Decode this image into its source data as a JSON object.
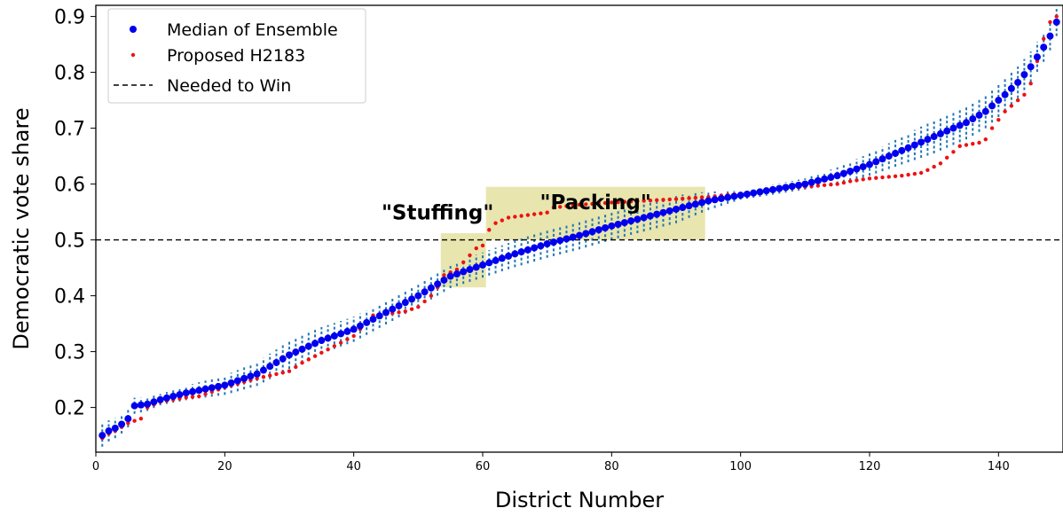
{
  "chart_data": {
    "type": "scatter",
    "xlabel": "District Number",
    "ylabel": "Democratic vote share",
    "xlim": [
      0,
      150
    ],
    "ylim": [
      0.12,
      0.92
    ],
    "xticks": [
      0,
      20,
      40,
      60,
      80,
      100,
      120,
      140
    ],
    "yticks": [
      0.2,
      0.3,
      0.4,
      0.5,
      0.6,
      0.7,
      0.8,
      0.9
    ],
    "grid": false,
    "legend_position": "top-left",
    "legend": {
      "median": "Median of Ensemble",
      "proposed": "Proposed H2183",
      "needed": "Needed to Win"
    },
    "colors": {
      "median": "#0000ee",
      "proposed": "#ee1111",
      "needed": "#000000",
      "range": "#1f77b4",
      "highlight": "#d8d47a"
    },
    "needed_to_win": 0.5,
    "annotations": [
      {
        "text": "\"Stuffing\"",
        "x": 53,
        "y": 0.537
      },
      {
        "text": "\"Packing\"",
        "x": 77.5,
        "y": 0.555
      }
    ],
    "highlight_regions": [
      {
        "x0": 53.5,
        "x1": 60.5,
        "y0": 0.415,
        "y1": 0.512
      },
      {
        "x0": 60.5,
        "x1": 94.5,
        "y0": 0.5,
        "y1": 0.595
      }
    ],
    "anchors": {
      "median": [
        [
          1,
          0.15
        ],
        [
          2,
          0.158
        ],
        [
          3,
          0.163
        ],
        [
          4,
          0.17
        ],
        [
          5,
          0.18
        ],
        [
          6,
          0.203
        ],
        [
          8,
          0.206
        ],
        [
          10,
          0.214
        ],
        [
          14,
          0.226
        ],
        [
          20,
          0.24
        ],
        [
          25,
          0.26
        ],
        [
          30,
          0.294
        ],
        [
          35,
          0.32
        ],
        [
          40,
          0.34
        ],
        [
          45,
          0.37
        ],
        [
          50,
          0.4
        ],
        [
          55,
          0.435
        ],
        [
          60,
          0.455
        ],
        [
          65,
          0.475
        ],
        [
          70,
          0.493
        ],
        [
          75,
          0.508
        ],
        [
          80,
          0.525
        ],
        [
          85,
          0.54
        ],
        [
          90,
          0.555
        ],
        [
          95,
          0.57
        ],
        [
          100,
          0.58
        ],
        [
          105,
          0.59
        ],
        [
          110,
          0.6
        ],
        [
          115,
          0.615
        ],
        [
          120,
          0.635
        ],
        [
          125,
          0.66
        ],
        [
          130,
          0.685
        ],
        [
          135,
          0.71
        ],
        [
          138,
          0.73
        ],
        [
          141,
          0.76
        ],
        [
          143,
          0.782
        ],
        [
          145,
          0.81
        ],
        [
          147,
          0.845
        ],
        [
          148,
          0.865
        ],
        [
          149,
          0.89
        ]
      ],
      "proposed": [
        [
          1,
          0.145
        ],
        [
          2,
          0.153
        ],
        [
          3,
          0.158
        ],
        [
          4,
          0.165
        ],
        [
          5,
          0.172
        ],
        [
          6,
          0.176
        ],
        [
          7,
          0.18
        ],
        [
          8,
          0.2
        ],
        [
          10,
          0.21
        ],
        [
          14,
          0.218
        ],
        [
          16,
          0.22
        ],
        [
          20,
          0.236
        ],
        [
          25,
          0.252
        ],
        [
          30,
          0.265
        ],
        [
          32,
          0.28
        ],
        [
          35,
          0.298
        ],
        [
          37,
          0.31
        ],
        [
          40,
          0.328
        ],
        [
          43,
          0.365
        ],
        [
          45,
          0.367
        ],
        [
          48,
          0.372
        ],
        [
          50,
          0.38
        ],
        [
          52,
          0.4
        ],
        [
          53,
          0.415
        ],
        [
          54,
          0.437
        ],
        [
          56,
          0.447
        ],
        [
          57,
          0.46
        ],
        [
          59,
          0.485
        ],
        [
          60,
          0.49
        ],
        [
          61,
          0.518
        ],
        [
          62,
          0.53
        ],
        [
          64,
          0.54
        ],
        [
          70,
          0.549
        ],
        [
          71,
          0.558
        ],
        [
          75,
          0.563
        ],
        [
          80,
          0.567
        ],
        [
          85,
          0.57
        ],
        [
          90,
          0.573
        ],
        [
          95,
          0.577
        ],
        [
          100,
          0.583
        ],
        [
          105,
          0.589
        ],
        [
          110,
          0.595
        ],
        [
          115,
          0.6
        ],
        [
          117,
          0.605
        ],
        [
          120,
          0.61
        ],
        [
          125,
          0.615
        ],
        [
          128,
          0.62
        ],
        [
          129,
          0.625
        ],
        [
          131,
          0.637
        ],
        [
          134,
          0.668
        ],
        [
          137,
          0.674
        ],
        [
          138,
          0.68
        ],
        [
          139,
          0.7
        ],
        [
          141,
          0.73
        ],
        [
          143,
          0.75
        ],
        [
          144,
          0.76
        ],
        [
          145,
          0.78
        ],
        [
          147,
          0.86
        ],
        [
          148,
          0.89
        ],
        [
          149,
          0.9
        ]
      ],
      "range_half": [
        [
          1,
          0.02
        ],
        [
          10,
          0.01
        ],
        [
          30,
          0.025
        ],
        [
          50,
          0.02
        ],
        [
          70,
          0.025
        ],
        [
          90,
          0.025
        ],
        [
          100,
          0.008
        ],
        [
          110,
          0.01
        ],
        [
          130,
          0.03
        ],
        [
          140,
          0.03
        ],
        [
          149,
          0.025
        ]
      ]
    }
  }
}
